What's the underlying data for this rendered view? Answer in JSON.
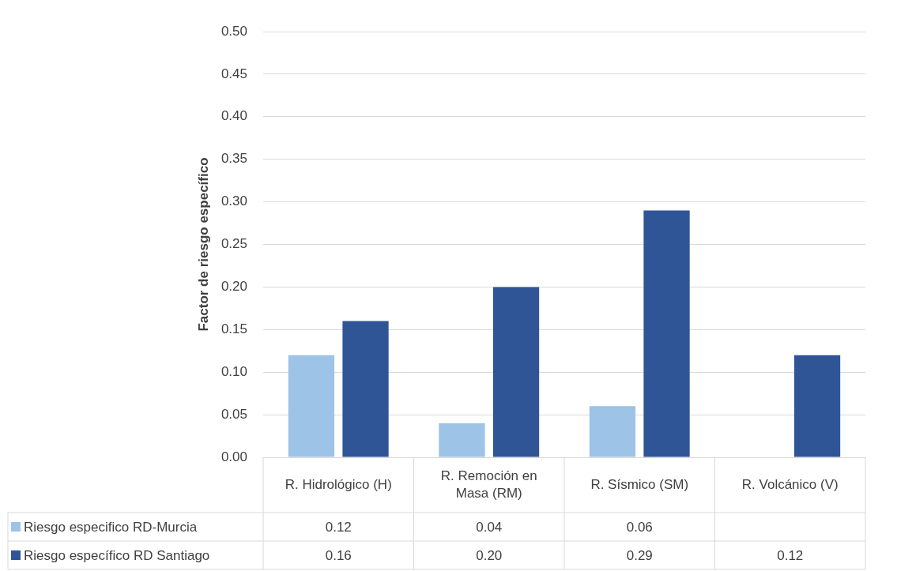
{
  "chart_data": {
    "type": "bar",
    "ylabel": "Factor de riesgo específico",
    "categories": [
      "R. Hidrológico (H)",
      "R. Remoción en Masa (RM)",
      "R. Sísmico (SM)",
      "R. Volcánico (V)"
    ],
    "series": [
      {
        "name": "Riesgo especifico RD-Murcia",
        "color": "#9dc3e6",
        "values": [
          0.12,
          0.04,
          0.06,
          null
        ],
        "value_labels": [
          "0.12",
          "0.04",
          "0.06",
          null
        ]
      },
      {
        "name": "Riesgo específico RD Santiago",
        "color": "#2f5597",
        "values": [
          0.16,
          0.2,
          0.29,
          0.12
        ],
        "value_labels": [
          "0.16",
          "0.20",
          "0.29",
          "0.12"
        ]
      }
    ],
    "ylim": [
      0,
      0.5
    ],
    "yticks": [
      {
        "value": 0,
        "label": "0.00"
      },
      {
        "value": 0.05,
        "label": "0.05"
      },
      {
        "value": 0.1,
        "label": "0.10"
      },
      {
        "value": 0.15,
        "label": "0.15"
      },
      {
        "value": 0.2,
        "label": "0.20"
      },
      {
        "value": 0.25,
        "label": "0.25"
      },
      {
        "value": 0.3,
        "label": "0.30"
      },
      {
        "value": 0.35,
        "label": "0.35"
      },
      {
        "value": 0.4,
        "label": "0.40"
      },
      {
        "value": 0.45,
        "label": "0.45"
      },
      {
        "value": 0.5,
        "label": "0.50"
      }
    ],
    "grid": "y",
    "legend": "bottom"
  }
}
